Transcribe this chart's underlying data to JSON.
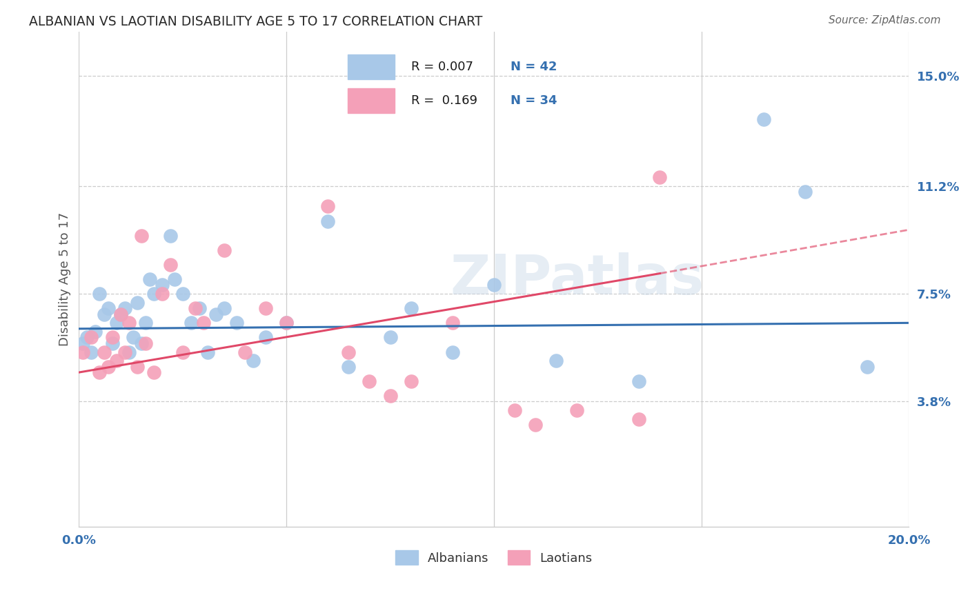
{
  "title": "ALBANIAN VS LAOTIAN DISABILITY AGE 5 TO 17 CORRELATION CHART",
  "source": "Source: ZipAtlas.com",
  "ylabel": "Disability Age 5 to 17",
  "xlim": [
    0.0,
    20.0
  ],
  "ylim": [
    -0.5,
    16.5
  ],
  "ytick_vals": [
    3.8,
    7.5,
    11.2,
    15.0
  ],
  "xtick_vals": [
    0.0,
    5.0,
    10.0,
    15.0,
    20.0
  ],
  "albanian_color": "#a8c8e8",
  "laotian_color": "#f4a0b8",
  "albanian_line_color": "#3570b0",
  "laotian_line_color": "#e04868",
  "albanian_R": 0.007,
  "laotian_R": 0.169,
  "albanian_N": 42,
  "laotian_N": 34,
  "title_color": "#2a2a2a",
  "source_color": "#666666",
  "tick_color": "#3570b0",
  "grid_color": "#cccccc",
  "axis_label_color": "#555555",
  "watermark": "ZIPatlas",
  "albanians_x": [
    0.1,
    0.2,
    0.3,
    0.4,
    0.5,
    0.6,
    0.7,
    0.8,
    0.9,
    1.0,
    1.1,
    1.2,
    1.3,
    1.4,
    1.5,
    1.6,
    1.7,
    1.8,
    2.0,
    2.2,
    2.3,
    2.5,
    2.7,
    2.9,
    3.1,
    3.3,
    3.5,
    3.8,
    4.2,
    4.5,
    5.0,
    6.0,
    6.5,
    7.5,
    8.0,
    9.0,
    10.0,
    11.5,
    13.5,
    16.5,
    17.5,
    19.0
  ],
  "albanians_y": [
    5.8,
    6.0,
    5.5,
    6.2,
    7.5,
    6.8,
    7.0,
    5.8,
    6.5,
    6.8,
    7.0,
    5.5,
    6.0,
    7.2,
    5.8,
    6.5,
    8.0,
    7.5,
    7.8,
    9.5,
    8.0,
    7.5,
    6.5,
    7.0,
    5.5,
    6.8,
    7.0,
    6.5,
    5.2,
    6.0,
    6.5,
    10.0,
    5.0,
    6.0,
    7.0,
    5.5,
    7.8,
    5.2,
    4.5,
    13.5,
    11.0,
    5.0
  ],
  "laotians_x": [
    0.1,
    0.3,
    0.5,
    0.6,
    0.7,
    0.8,
    0.9,
    1.0,
    1.1,
    1.2,
    1.4,
    1.5,
    1.6,
    1.8,
    2.0,
    2.2,
    2.5,
    2.8,
    3.0,
    3.5,
    4.0,
    4.5,
    5.0,
    6.0,
    6.5,
    7.0,
    7.5,
    8.0,
    9.0,
    10.5,
    11.0,
    12.0,
    13.5,
    14.0
  ],
  "laotians_y": [
    5.5,
    6.0,
    4.8,
    5.5,
    5.0,
    6.0,
    5.2,
    6.8,
    5.5,
    6.5,
    5.0,
    9.5,
    5.8,
    4.8,
    7.5,
    8.5,
    5.5,
    7.0,
    6.5,
    9.0,
    5.5,
    7.0,
    6.5,
    10.5,
    5.5,
    4.5,
    4.0,
    4.5,
    6.5,
    3.5,
    3.0,
    3.5,
    3.2,
    11.5
  ],
  "alb_line_start_x": 0.0,
  "alb_line_start_y": 6.3,
  "alb_line_end_x": 20.0,
  "alb_line_end_y": 6.5,
  "lao_line_start_x": 0.0,
  "lao_line_start_y": 4.8,
  "lao_line_end_x": 14.0,
  "lao_line_end_y": 8.2,
  "lao_dash_start_x": 14.0,
  "lao_dash_start_y": 8.2,
  "lao_dash_end_x": 20.0,
  "lao_dash_end_y": 9.7
}
